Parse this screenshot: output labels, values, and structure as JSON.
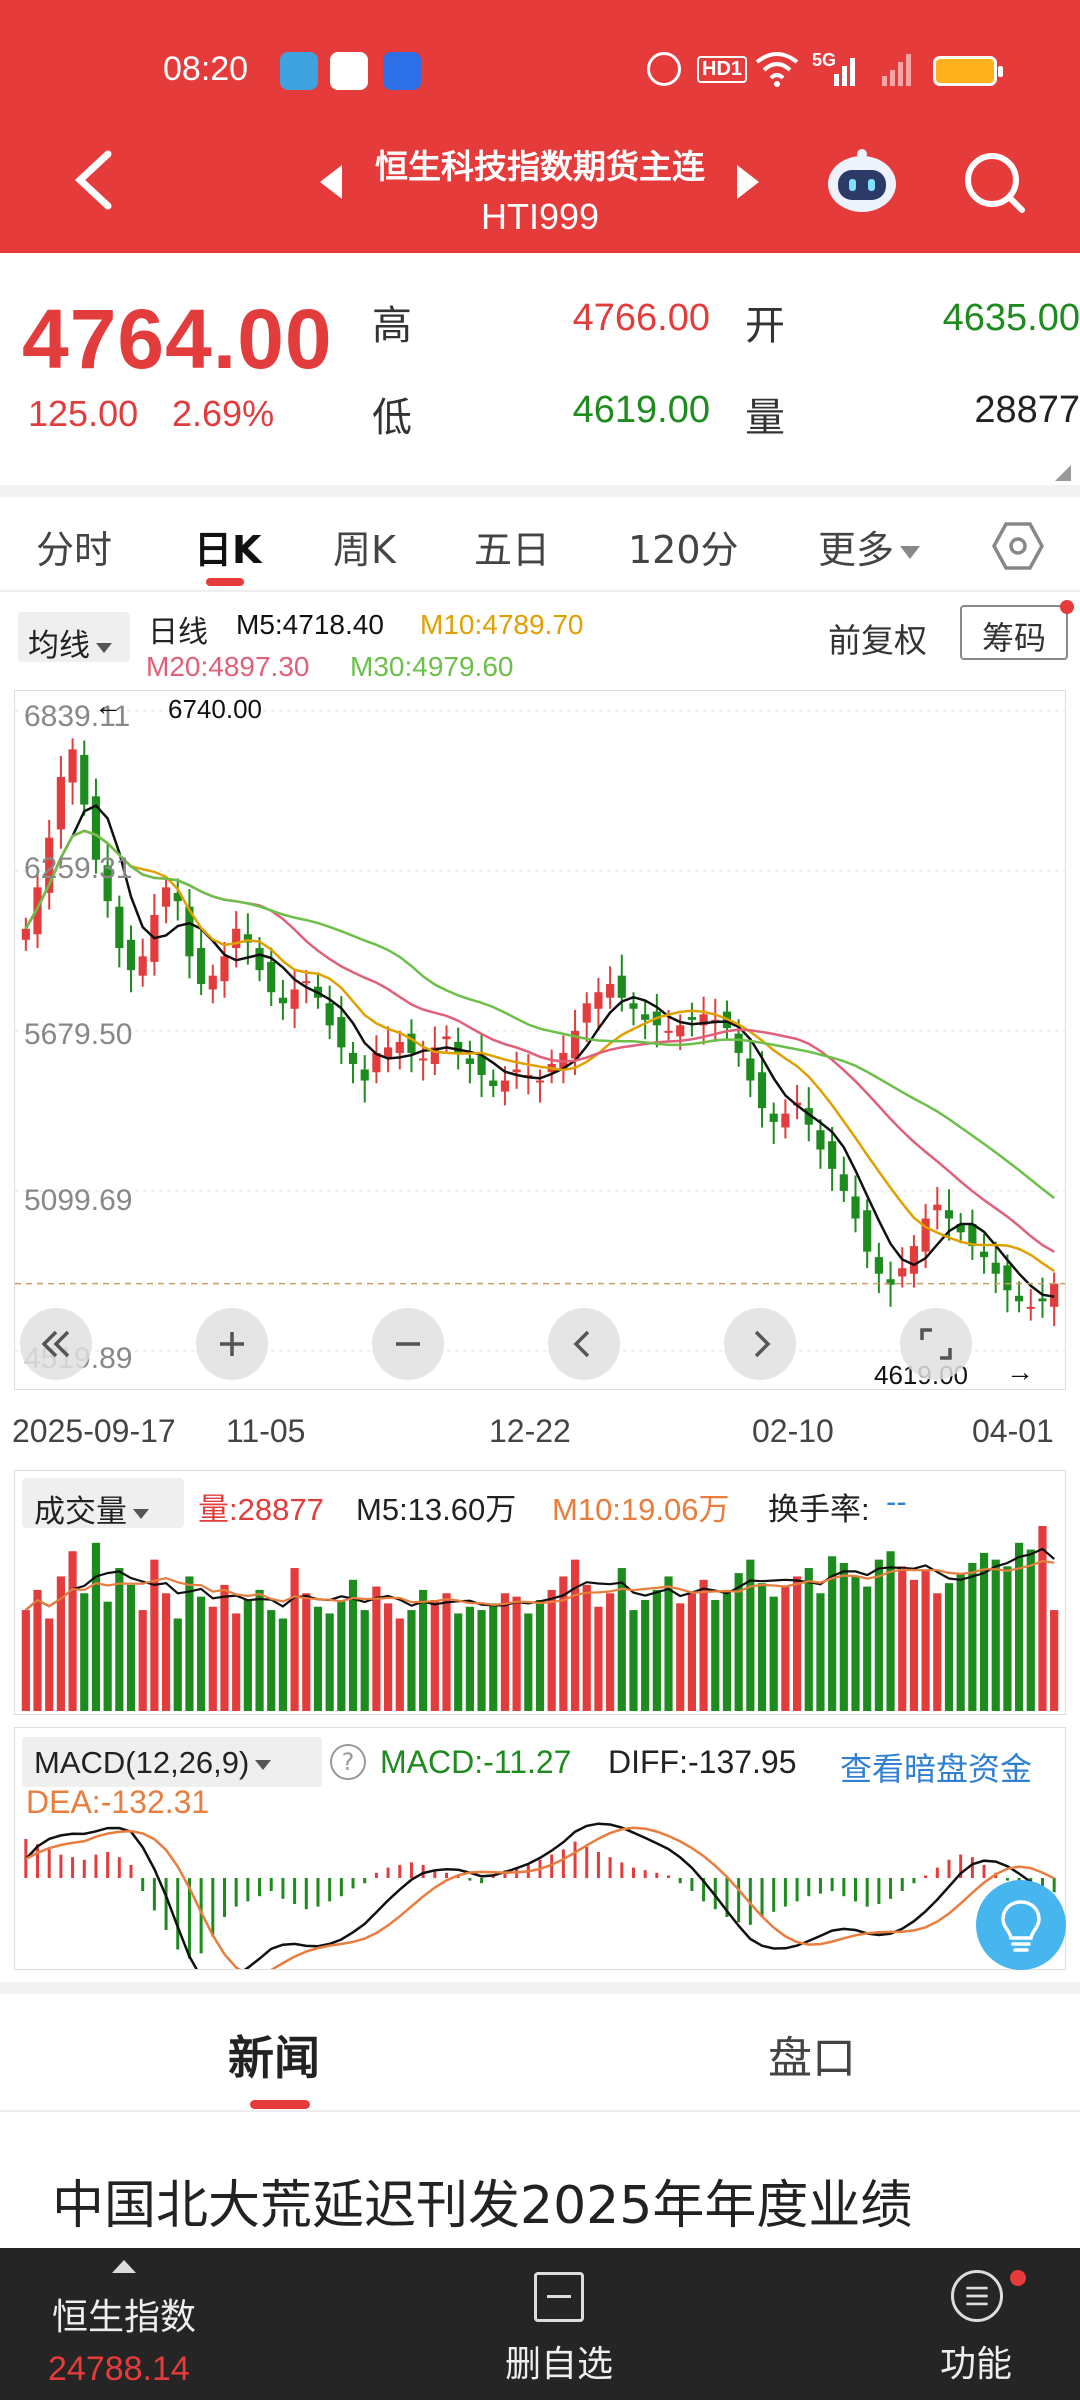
{
  "status_bar": {
    "time": "08:20",
    "hd_badge": "HD1",
    "net_label": "5G"
  },
  "header": {
    "title": "恒生科技指数期货主连",
    "code": "HTI999"
  },
  "quote": {
    "last_price": "4764.00",
    "change": "125.00",
    "change_pct": "2.69%",
    "high_label": "高",
    "high": "4766.00",
    "open_label": "开",
    "open": "4635.00",
    "low_label": "低",
    "low": "4619.00",
    "volume_label": "量",
    "volume": "28877"
  },
  "tabs": {
    "items": [
      "分时",
      "日K",
      "周K",
      "五日",
      "120分"
    ],
    "more": "更多",
    "active": "日K"
  },
  "ma_bar": {
    "select_label": "均线",
    "period_label": "日线",
    "m5": "M5:4718.40",
    "m10": "M10:4789.70",
    "m20": "M20:4897.30",
    "m30": "M30:4979.60",
    "adjust": "前复权",
    "chips": "筹码"
  },
  "kchart": {
    "y_labels": [
      "6839.11",
      "6259.31",
      "5679.50",
      "5099.69",
      "4519.89"
    ],
    "x_labels": [
      "2025-09-17",
      "11-05",
      "12-22",
      "02-10",
      "04-01"
    ],
    "high_mark": "6740.00",
    "low_mark": "4619.00"
  },
  "volume_panel": {
    "select_label": "成交量",
    "vol": "量:28877",
    "m5": "M5:13.60万",
    "m10": "M10:19.06万",
    "turnover": "换手率:",
    "turnover_value": "--"
  },
  "macd_panel": {
    "select_label": "MACD(12,26,9)",
    "help": "?",
    "macd": "MACD:-11.27",
    "diff": "DIFF:-137.95",
    "dark_pool_link": "查看暗盘资金",
    "dea": "DEA:-132.31"
  },
  "lower_tabs": {
    "news": "新闻",
    "order_book": "盘口"
  },
  "news": {
    "headline": "中国北大荒延迟刊发2025年年度业绩"
  },
  "bottom_bar": {
    "index_name": "恒生指数",
    "index_value": "24788.14",
    "delete_watch": "删自选",
    "functions": "功能"
  },
  "colors": {
    "brand_red": "#e63b3b",
    "up_red": "#e23c3c",
    "down_green": "#1e8b1e",
    "ma5": "#111111",
    "ma10": "#e0a000",
    "ma20": "#e0607a",
    "ma30": "#6cc04a",
    "link_blue": "#2f7fd3"
  },
  "chart_data": {
    "type": "candlestick",
    "title": "",
    "x_axis_labels": [
      "2025-09-17",
      "11-05",
      "12-22",
      "02-10",
      "04-01"
    ],
    "ylim": [
      4519.89,
      6839.11
    ],
    "y_ticks": [
      6839.11,
      6259.31,
      5679.5,
      5099.69,
      4519.89
    ],
    "annotations": [
      {
        "label": "6740.00",
        "type": "period-high"
      },
      {
        "label": "4619.00",
        "type": "period-low"
      }
    ],
    "close_series": [
      6050,
      6200,
      6380,
      6600,
      6700,
      6500,
      6300,
      6150,
      5980,
      5900,
      5950,
      6100,
      6200,
      6150,
      5950,
      5850,
      5880,
      5950,
      6050,
      6000,
      5900,
      5820,
      5780,
      5830,
      5860,
      5800,
      5700,
      5620,
      5560,
      5500,
      5600,
      5620,
      5640,
      5600,
      5580,
      5620,
      5660,
      5600,
      5560,
      5520,
      5480,
      5500,
      5540,
      5520,
      5500,
      5560,
      5600,
      5680,
      5780,
      5820,
      5850,
      5800,
      5760,
      5720,
      5700,
      5680,
      5700,
      5720,
      5740,
      5720,
      5690,
      5600,
      5500,
      5400,
      5350,
      5380,
      5420,
      5340,
      5250,
      5180,
      5100,
      5000,
      4880,
      4800,
      4760,
      4820,
      4900,
      5000,
      5050,
      5000,
      4950,
      4900,
      4860,
      4800,
      4740,
      4700,
      4680,
      4700,
      4764
    ],
    "series": [
      {
        "name": "M5",
        "last": 4718.4
      },
      {
        "name": "M10",
        "last": 4789.7
      },
      {
        "name": "M20",
        "last": 4897.3
      },
      {
        "name": "M30",
        "last": 4979.6
      }
    ],
    "volume_series": [
      60,
      72,
      55,
      80,
      95,
      70,
      100,
      65,
      85,
      75,
      60,
      90,
      70,
      55,
      80,
      68,
      62,
      75,
      58,
      66,
      72,
      60,
      55,
      85,
      70,
      62,
      58,
      66,
      78,
      60,
      74,
      64,
      55,
      60,
      72,
      66,
      70,
      58,
      62,
      60,
      64,
      70,
      68,
      58,
      66,
      72,
      80,
      90,
      75,
      62,
      70,
      85,
      60,
      66,
      72,
      80,
      64,
      70,
      78,
      66,
      72,
      82,
      90,
      76,
      68,
      74,
      80,
      85,
      70,
      92,
      88,
      80,
      74,
      90,
      95,
      86,
      78,
      84,
      70,
      76,
      82,
      88,
      94,
      90,
      86,
      100,
      96,
      110,
      60
    ],
    "macd_hist": [
      30,
      26,
      22,
      18,
      16,
      14,
      18,
      20,
      16,
      10,
      -10,
      -25,
      -40,
      -55,
      -62,
      -58,
      -45,
      -30,
      -22,
      -18,
      -14,
      -10,
      -16,
      -20,
      -24,
      -22,
      -18,
      -14,
      -8,
      -4,
      4,
      8,
      10,
      12,
      10,
      6,
      4,
      2,
      -2,
      -4,
      2,
      6,
      8,
      10,
      14,
      18,
      22,
      28,
      24,
      20,
      16,
      12,
      8,
      6,
      4,
      2,
      -4,
      -10,
      -18,
      -24,
      -30,
      -34,
      -36,
      -30,
      -26,
      -22,
      -18,
      -14,
      -12,
      -10,
      -14,
      -18,
      -22,
      -20,
      -16,
      -10,
      -4,
      2,
      8,
      14,
      18,
      16,
      10,
      4,
      -2,
      -8,
      -12,
      -16,
      -11
    ]
  }
}
